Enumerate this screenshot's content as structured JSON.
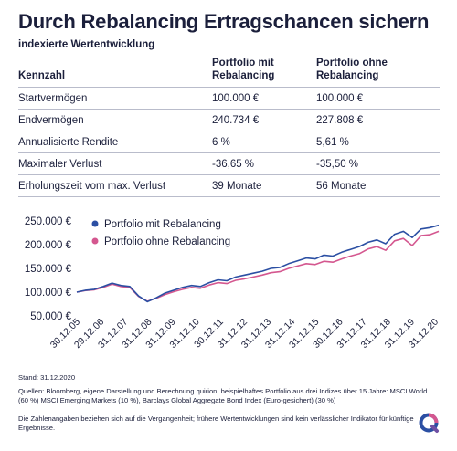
{
  "header": {
    "title": "Durch Rebalancing Ertragschancen sichern",
    "subtitle": "indexierte Wertentwicklung"
  },
  "table": {
    "headers": [
      "Kennzahl",
      "Portfolio mit Rebalancing",
      "Portfolio ohne Rebalancing"
    ],
    "rows": [
      [
        "Startvermögen",
        "100.000 €",
        "100.000 €"
      ],
      [
        "Endvermögen",
        "240.734 €",
        "227.808 €"
      ],
      [
        "Annualisierte Rendite",
        "6 %",
        "5,61 %"
      ],
      [
        "Maximaler Verlust",
        "-36,65 %",
        "-35,50 %"
      ],
      [
        "Erholungszeit vom max. Verlust",
        "39 Monate",
        "56 Monate"
      ]
    ]
  },
  "chart_data": {
    "type": "line",
    "y_ticks": [
      "250.000 €",
      "200.000 €",
      "150.000 €",
      "100.000 €",
      "50.000 €"
    ],
    "x_ticks": [
      "30.12.05",
      "29.12.06",
      "31.12.07",
      "31.12.08",
      "31.12.09",
      "31.12.10",
      "30.12.11",
      "31.12.12",
      "31.12.13",
      "31.12.14",
      "31.12.15",
      "30.12.16",
      "31.12.17",
      "31.12.18",
      "31.12.19",
      "31.12.20"
    ],
    "ylim": [
      50000,
      250000
    ],
    "legend_position": "top-left",
    "series": [
      {
        "name": "Portfolio mit Rebalancing",
        "color": "#2b4fa3",
        "values": [
          100000,
          104000,
          106000,
          112000,
          119000,
          114000,
          112000,
          92000,
          80000,
          88000,
          98000,
          104000,
          110000,
          114000,
          112000,
          120000,
          126000,
          124000,
          132000,
          136000,
          140000,
          144000,
          150000,
          152000,
          160000,
          166000,
          172000,
          170000,
          178000,
          176000,
          184000,
          190000,
          196000,
          205000,
          210000,
          202000,
          222000,
          228000,
          215000,
          233000,
          236000,
          241000
        ]
      },
      {
        "name": "Portfolio ohne Rebalancing",
        "color": "#d4578f",
        "values": [
          100000,
          103500,
          105000,
          110000,
          117000,
          112000,
          110000,
          91000,
          81000,
          87000,
          95000,
          101000,
          106000,
          110000,
          108000,
          115000,
          120000,
          118000,
          125000,
          128000,
          132000,
          136000,
          141000,
          143000,
          150000,
          155000,
          160000,
          158000,
          165000,
          163000,
          170000,
          176000,
          181000,
          191000,
          196000,
          188000,
          208000,
          213000,
          198000,
          219000,
          221000,
          228000
        ]
      }
    ]
  },
  "footer": {
    "stand": "Stand: 31.12.2020",
    "sources": "Quellen: Bloomberg, eigene Darstellung und Berechnung quirion; beispielhaftes Portfolio aus drei Indizes über 15 Jahre: MSCI World (60 %) MSCI Emerging Markets (10 %), Barclays Global Aggregate Bond Index (Euro-gesichert) (30 %)",
    "disclaimer": "Die Zahlenangaben beziehen sich auf die Vergangenheit; frühere Wertentwicklungen sind kein verlässlicher Indikator für künftige Ergebnisse."
  },
  "logo": {
    "icon": "quirion-logo-icon",
    "colors": [
      "#2b4fa3",
      "#d4578f"
    ]
  }
}
